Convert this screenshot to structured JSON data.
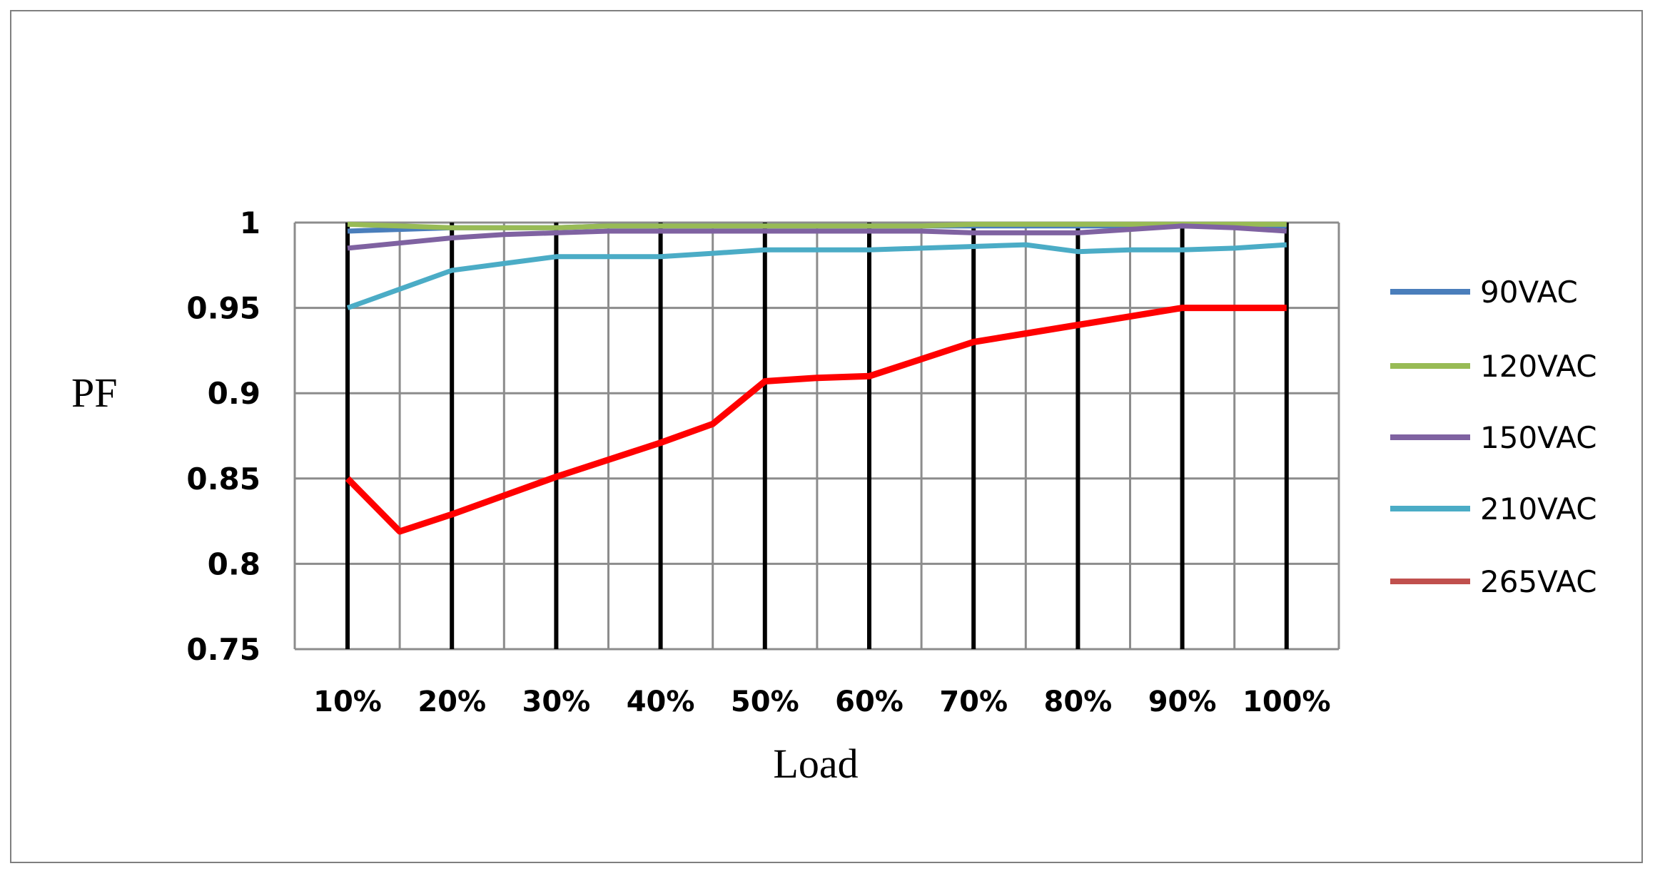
{
  "chart_data": {
    "type": "line",
    "title": "",
    "xlabel": "Load",
    "ylabel": "PF",
    "ylim": [
      0.75,
      1
    ],
    "y_ticks": [
      "1",
      "0.95",
      "0.9",
      "0.85",
      "0.8",
      "0.75"
    ],
    "y_tick_values": [
      1,
      0.95,
      0.9,
      0.85,
      0.8,
      0.75
    ],
    "categories": [
      "10%",
      "",
      "20%",
      "",
      "30%",
      "",
      "40%",
      "",
      "50%",
      "",
      "60%",
      "",
      "70%",
      "",
      "80%",
      "",
      "90%",
      "",
      "100%"
    ],
    "x_tick_labels": [
      "10%",
      "20%",
      "30%",
      "40%",
      "50%",
      "60%",
      "70%",
      "80%",
      "90%",
      "100%"
    ],
    "grid": true,
    "legend_position": "right",
    "series": [
      {
        "name": "90VAC",
        "color": "#4a7ebb",
        "values": [
          0.995,
          0.996,
          0.997,
          0.997,
          0.997,
          0.998,
          0.998,
          0.998,
          0.998,
          0.998,
          0.998,
          0.998,
          0.998,
          0.998,
          0.998,
          0.998,
          0.998,
          0.998,
          0.998
        ]
      },
      {
        "name": "120VAC",
        "color": "#98bb55",
        "values": [
          0.999,
          0.998,
          0.997,
          0.997,
          0.997,
          0.998,
          0.998,
          0.998,
          0.998,
          0.998,
          0.998,
          0.998,
          0.999,
          0.999,
          0.999,
          0.999,
          0.999,
          0.999,
          0.999
        ]
      },
      {
        "name": "150VAC",
        "color": "#7f62a1",
        "values": [
          0.985,
          0.988,
          0.991,
          0.993,
          0.994,
          0.995,
          0.995,
          0.995,
          0.995,
          0.995,
          0.995,
          0.995,
          0.994,
          0.994,
          0.994,
          0.996,
          0.998,
          0.997,
          0.995
        ]
      },
      {
        "name": "210VAC",
        "color": "#4bacc6",
        "values": [
          0.95,
          0.961,
          0.972,
          0.976,
          0.98,
          0.98,
          0.98,
          0.982,
          0.984,
          0.984,
          0.984,
          0.985,
          0.986,
          0.987,
          0.983,
          0.984,
          0.984,
          0.985,
          0.987
        ]
      },
      {
        "name": "265VAC",
        "color": "#ff0000",
        "legend_color": "#c0504d",
        "values": [
          0.85,
          0.819,
          0.829,
          0.84,
          0.851,
          0.861,
          0.871,
          0.882,
          0.907,
          0.909,
          0.91,
          0.92,
          0.93,
          0.935,
          0.94,
          0.945,
          0.95,
          0.95,
          0.95
        ]
      }
    ]
  }
}
